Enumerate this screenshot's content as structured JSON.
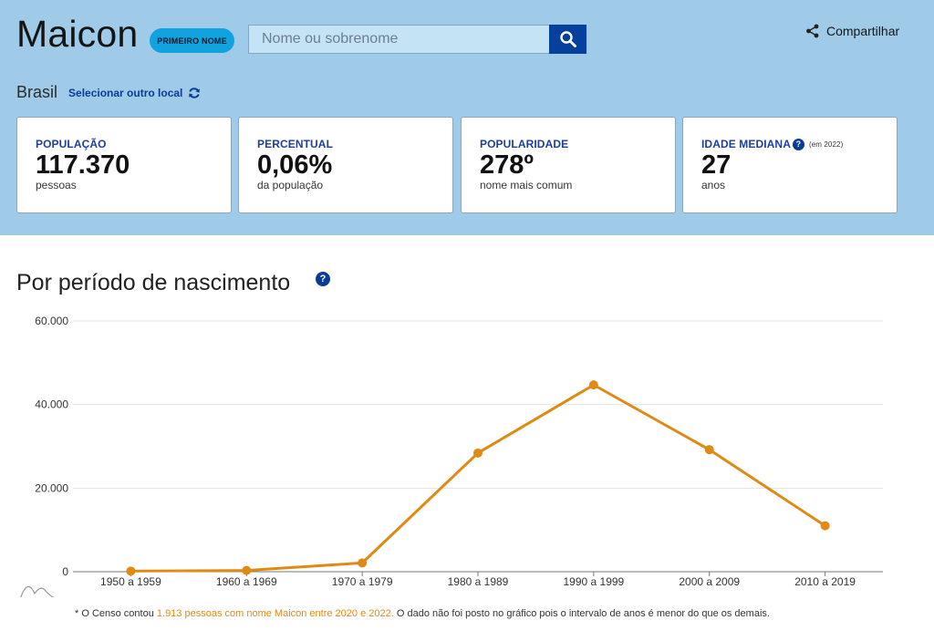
{
  "header": {
    "name": "Maicon",
    "badge": "PRIMEIRO NOME",
    "search_placeholder": "Nome ou sobrenome",
    "share_label": "Compartilhar"
  },
  "location": {
    "name": "Brasil",
    "change_label": "Selecionar outro local"
  },
  "stats": [
    {
      "label": "POPULAÇÃO",
      "value": "117.370",
      "sub": "pessoas"
    },
    {
      "label": "PERCENTUAL",
      "value": "0,06%",
      "sub": "da população"
    },
    {
      "label": "POPULARIDADE",
      "value": "278º",
      "sub": "nome mais comum"
    },
    {
      "label": "IDADE MEDIANA",
      "help": "?",
      "note": "(em 2022)",
      "value": "27",
      "sub": "anos"
    }
  ],
  "section": {
    "title": "Por período de nascimento",
    "help": "?"
  },
  "chart_data": {
    "type": "line",
    "categories": [
      "1950 a 1959",
      "1960 a 1969",
      "1970 a 1979",
      "1980 a 1989",
      "1990 a 1999",
      "2000 a 2009",
      "2010 a 2019"
    ],
    "values": [
      150,
      300,
      2100,
      28400,
      44700,
      29200,
      11000
    ],
    "ylim": [
      0,
      60000
    ],
    "yticks": [
      0,
      20000,
      40000,
      60000
    ],
    "ytick_labels": [
      "0",
      "20.000",
      "40.000",
      "60.000"
    ],
    "grid": true,
    "line_color": "#e08a14"
  },
  "footnote": {
    "prefix": "* O Censo contou ",
    "highlight": "1.913 pessoas com nome Maicon entre 2020 e 2022.",
    "suffix": " O dado não foi posto no gráfico pois o intervalo de anos é menor do que os demais."
  }
}
